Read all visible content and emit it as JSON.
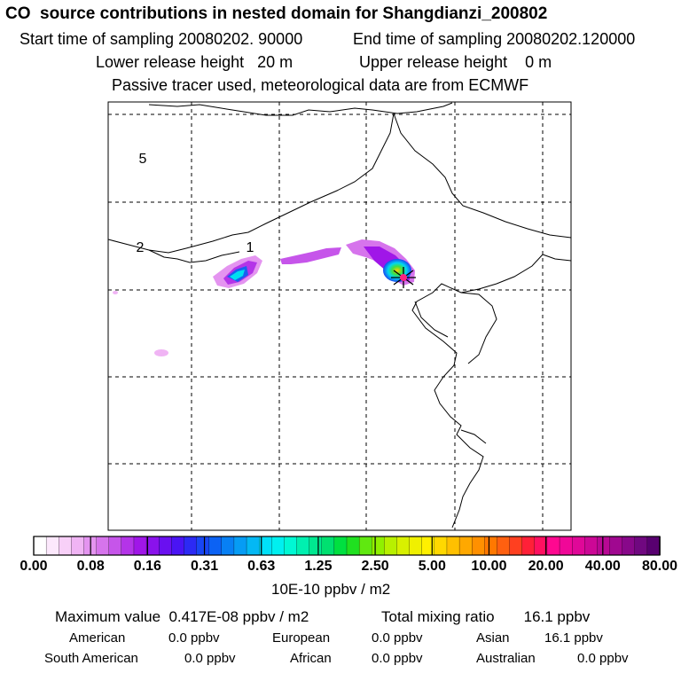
{
  "header": {
    "title": "CO  source contributions in nested domain for Shangdianzi_200802",
    "start_time": "Start time of sampling 20080202. 90000",
    "end_time": "End time of sampling 20080202.120000",
    "lower_height": "Lower release height   20 m",
    "upper_height": "Upper release height    0 m",
    "tracer_note": "Passive tracer used, meteorological data are from ECMWF"
  },
  "map": {
    "region_labels": [
      "5",
      "2",
      "1"
    ]
  },
  "colorbar": {
    "ticks": [
      "0.00",
      "0.08",
      "0.16",
      "0.31",
      "0.63",
      "1.25",
      "2.50",
      "5.00",
      "10.00",
      "20.00",
      "40.00",
      "80.00"
    ],
    "unit": "10E-10 ppbv / m2",
    "colors": [
      "#ffffff",
      "#fce8fc",
      "#f8d0f8",
      "#f0b4f4",
      "#e494f0",
      "#d674ec",
      "#c655ea",
      "#b434e8",
      "#a016e8",
      "#8a12ec",
      "#6a10f0",
      "#4a14f4",
      "#2c2af4",
      "#1846f4",
      "#0c62f4",
      "#0880f4",
      "#069cf4",
      "#04b8f4",
      "#00e0f8",
      "#00f0f0",
      "#00f8d4",
      "#00f0b0",
      "#00e890",
      "#00e070",
      "#00e040",
      "#20e020",
      "#60e810",
      "#90f000",
      "#b8f000",
      "#d8f000",
      "#f0f000",
      "#fff000",
      "#ffd800",
      "#ffc000",
      "#ffa800",
      "#ff9000",
      "#ff7800",
      "#ff6010",
      "#ff4020",
      "#ff2038",
      "#ff1060",
      "#ff0890",
      "#f00898",
      "#e00898",
      "#cc0896",
      "#b80894",
      "#a00890",
      "#88088a",
      "#700880",
      "#580070"
    ]
  },
  "stats": {
    "max_value": "Maximum value  0.417E-08 ppbv / m2",
    "total_ratio": "Total mixing ratio       16.1 ppbv",
    "american": "American",
    "american_val": "0.0 ppbv",
    "european": "European",
    "european_val": "0.0 ppbv",
    "asian": "Asian",
    "asian_val": "16.1 ppbv",
    "south_american": "South American",
    "south_american_val": "0.0 ppbv",
    "african": "African",
    "african_val": "0.0 ppbv",
    "australian": "Australian",
    "australian_val": "0.0 ppbv"
  }
}
